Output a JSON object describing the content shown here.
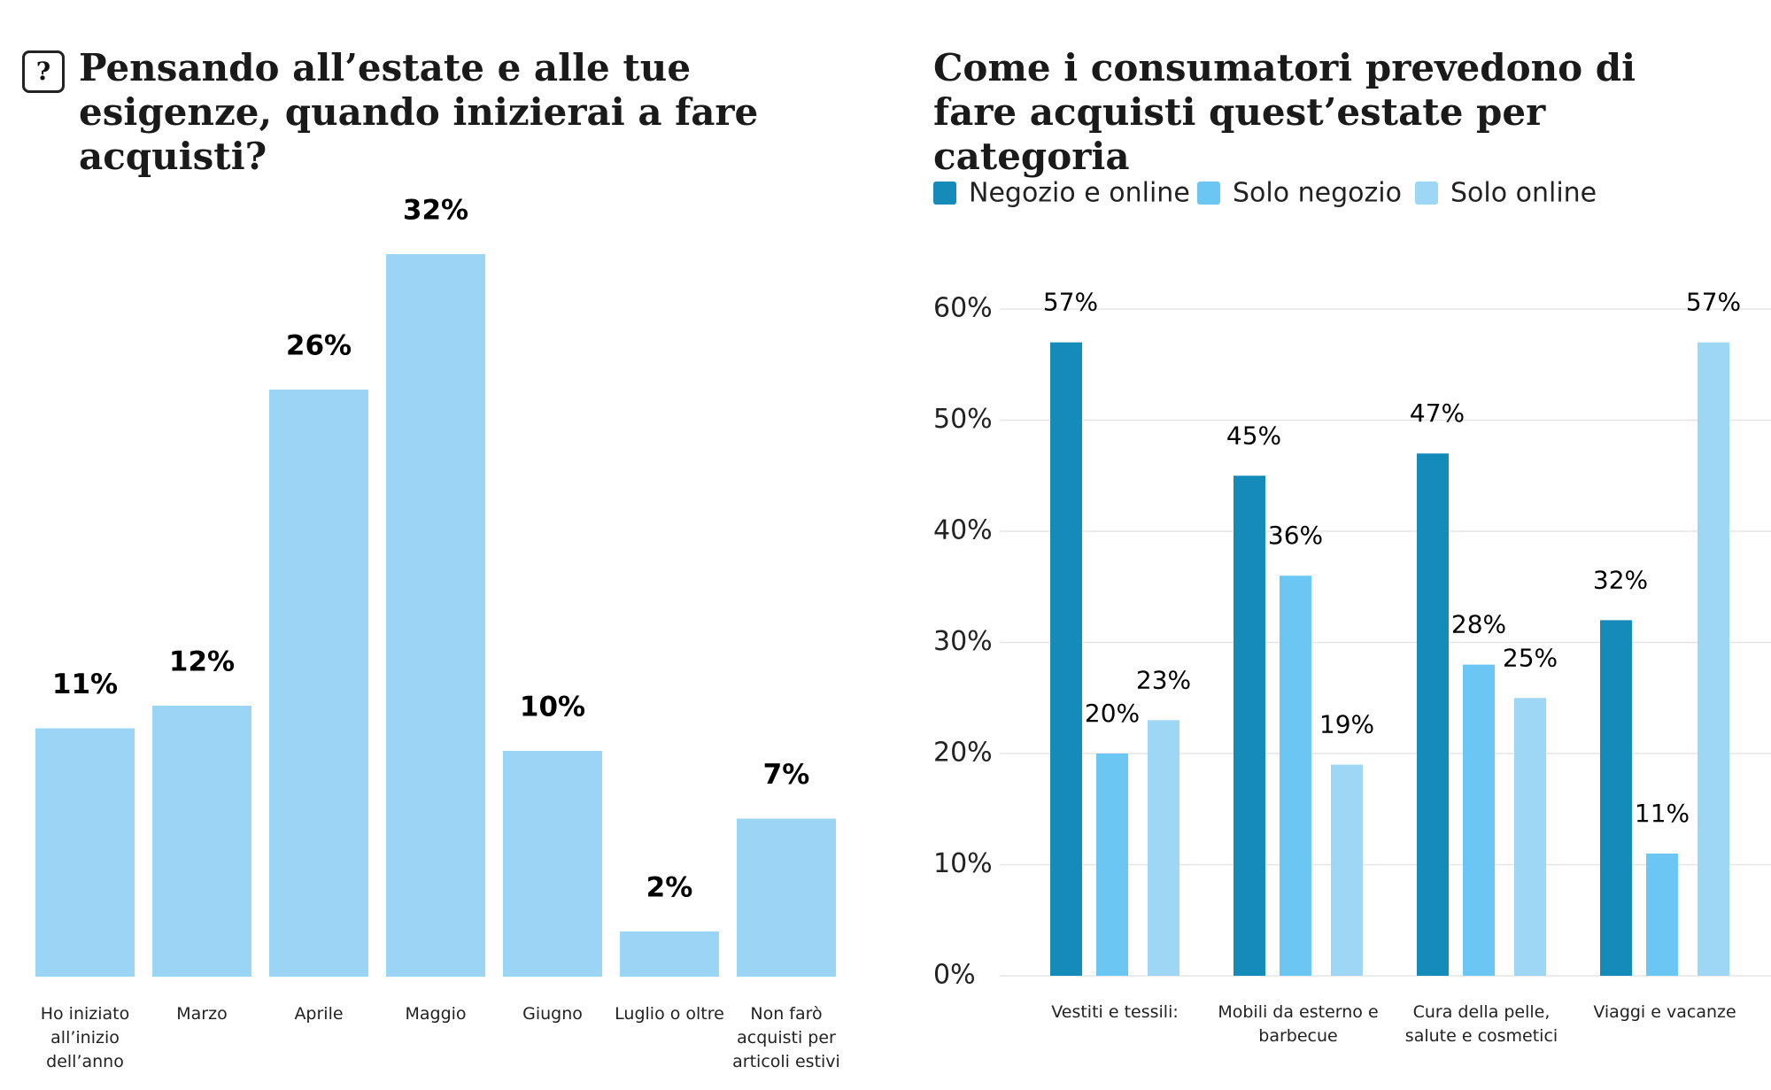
{
  "chart_data": [
    {
      "type": "bar",
      "title": "Pensando all’estate e alle tue esigenze, quando inizierai a fare acquisti?",
      "icon": "?",
      "categories": [
        "Ho iniziato all’inizio dell’anno",
        "Marzo",
        "Aprile",
        "Maggio",
        "Giugno",
        "Luglio o oltre",
        "Non farò acquisti per articoli estivi"
      ],
      "values": [
        11,
        12,
        26,
        32,
        10,
        2,
        7
      ],
      "value_labels": [
        "11%",
        "12%",
        "26%",
        "32%",
        "10%",
        "2%",
        "7%"
      ],
      "color": "#9bd5f5"
    },
    {
      "type": "grouped_bar",
      "title": "Come i consumatori prevedono di fare acquisti quest’estate per categoria",
      "categories": [
        "Vestiti e tessili:",
        "Mobili da esterno e barbecue",
        "Cura della pelle, salute e cosmetici",
        "Viaggi e vacanze"
      ],
      "series": [
        {
          "name": "Negozio e online",
          "color": "#158bb9",
          "values": [
            57,
            45,
            47,
            32
          ],
          "value_labels": [
            "57%",
            "45%",
            "47%",
            "32%"
          ]
        },
        {
          "name": "Solo negozio",
          "color": "#6cc6f4",
          "values": [
            20,
            36,
            28,
            11
          ],
          "value_labels": [
            "20%",
            "36%",
            "28%",
            "11%"
          ]
        },
        {
          "name": "Solo online",
          "color": "#9ed6f5",
          "values": [
            23,
            19,
            25,
            57
          ],
          "value_labels": [
            "23%",
            "19%",
            "25%",
            "57%"
          ]
        }
      ],
      "ylim": [
        0,
        60
      ],
      "yticks": [
        {
          "value": 0,
          "label": "0%"
        },
        {
          "value": 10,
          "label": "10%"
        },
        {
          "value": 20,
          "label": "20%"
        },
        {
          "value": 30,
          "label": "30%"
        },
        {
          "value": 40,
          "label": "40%"
        },
        {
          "value": 50,
          "label": "50%"
        },
        {
          "value": 60,
          "label": "60%"
        }
      ],
      "grid": true
    }
  ]
}
